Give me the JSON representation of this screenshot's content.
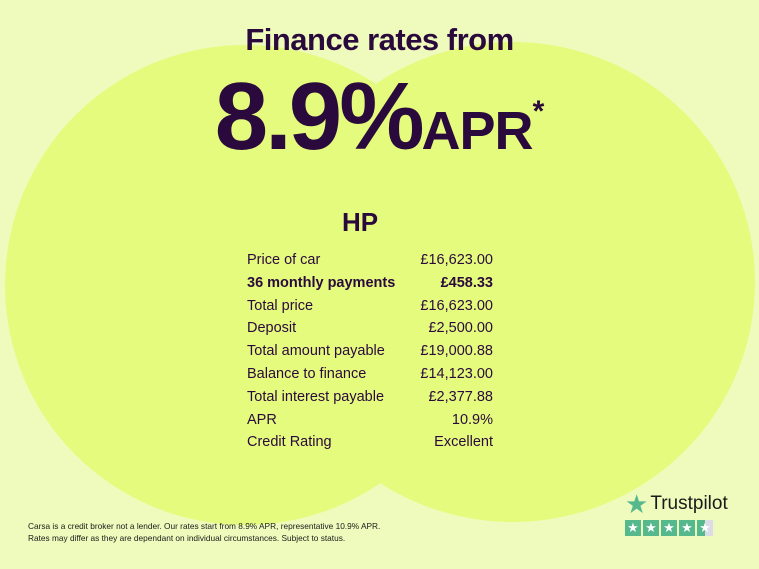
{
  "headline": "Finance rates from",
  "rate": "8.9%",
  "rate_suffix": "APR",
  "asterisk": "*",
  "product": "HP",
  "rows": [
    {
      "label": "Price of car",
      "value": "£16,623.00"
    },
    {
      "label": "36 monthly payments",
      "value": "£458.33",
      "bold": true
    },
    {
      "label": "Total price",
      "value": "£16,623.00"
    },
    {
      "label": "Deposit",
      "value": "£2,500.00"
    },
    {
      "label": "Total amount payable",
      "value": "£19,000.88"
    },
    {
      "label": "Balance to finance",
      "value": "£14,123.00"
    },
    {
      "label": "Total interest payable",
      "value": "£2,377.88"
    },
    {
      "label": "APR",
      "value": "10.9%"
    },
    {
      "label": "Credit Rating",
      "value": "Excellent"
    }
  ],
  "disclaimer": [
    "Carsa is a credit broker not a lender. Our rates start from 8.9% APR, representative 10.9% APR.",
    "Rates may differ as they are dependant on individual circumstances. Subject to status."
  ],
  "trustpilot": {
    "label": "Trustpilot",
    "rating_stars": 4.5,
    "star_color": "#55b98d"
  },
  "colors": {
    "text": "#2a0a3c",
    "background": "#effbbd",
    "circles": "#e5fb7d"
  }
}
